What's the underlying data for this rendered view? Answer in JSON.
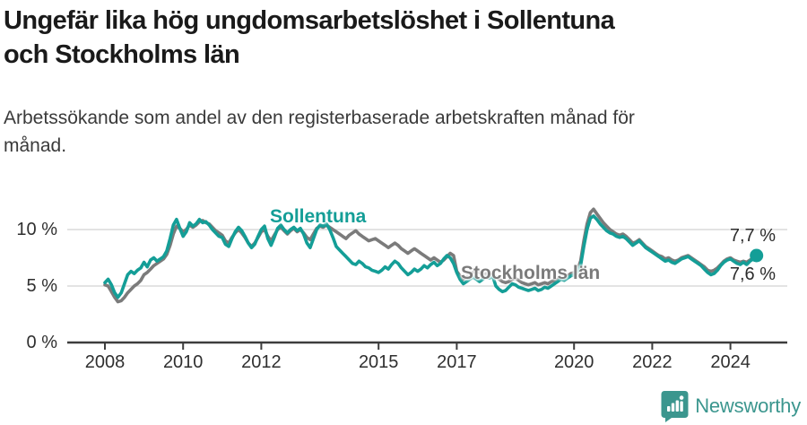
{
  "header": {
    "title": "Ungefär lika hög ungdomsarbetslöshet i Sollentuna\noch Stockholms län",
    "subtitle": "Arbetssökande som andel av den registerbaserade arbetskraften månad för\nmånad."
  },
  "chart_data": {
    "type": "line",
    "unit": "%",
    "frequency": "monthly",
    "x_range": "2008-01 to 2024-09",
    "grid": "horizontal gridlines at 5 % and 10 %",
    "ylim": [
      0,
      12
    ],
    "x_ticks": [
      2008,
      2010,
      2012,
      2015,
      2017,
      2020,
      2022,
      2024
    ],
    "x_tick_labels": [
      "2008",
      "2010",
      "2012",
      "2015",
      "2017",
      "2020",
      "2022",
      "2024"
    ],
    "y_ticks": [
      10,
      5,
      0
    ],
    "y_tick_labels": [
      "10 %",
      "5 %",
      "0 %"
    ],
    "series": [
      {
        "name": "Sollentuna",
        "color": "#149e97",
        "end_label": "7,7 %",
        "values": [
          5.3,
          5.6,
          5.1,
          4.4,
          4.0,
          4.4,
          5.2,
          6.0,
          6.3,
          6.1,
          6.4,
          6.6,
          7.1,
          6.7,
          7.3,
          7.5,
          7.2,
          7.4,
          7.6,
          8.1,
          9.2,
          10.4,
          10.9,
          10.1,
          9.4,
          9.8,
          10.6,
          10.3,
          10.5,
          10.9,
          10.6,
          10.7,
          10.4,
          10.0,
          9.7,
          9.4,
          9.3,
          8.7,
          8.5,
          9.2,
          9.8,
          10.2,
          9.9,
          9.4,
          8.8,
          8.4,
          8.7,
          9.4,
          10.0,
          10.3,
          9.2,
          8.6,
          9.3,
          10.1,
          10.4,
          10.0,
          9.7,
          10.0,
          10.2,
          9.9,
          10.1,
          9.6,
          8.8,
          8.4,
          9.2,
          10.0,
          10.4,
          10.3,
          10.5,
          10.0,
          9.3,
          8.5,
          8.2,
          7.9,
          7.6,
          7.3,
          7.0,
          6.9,
          7.2,
          7.0,
          6.7,
          6.6,
          6.4,
          6.3,
          6.2,
          6.4,
          6.7,
          6.5,
          6.9,
          7.2,
          7.0,
          6.6,
          6.3,
          6.0,
          6.2,
          6.5,
          6.3,
          6.5,
          6.8,
          6.6,
          6.9,
          7.1,
          6.8,
          7.0,
          7.4,
          7.7,
          7.5,
          7.0,
          6.2,
          5.6,
          5.2,
          5.4,
          5.6,
          5.8,
          5.6,
          5.4,
          5.6,
          5.8,
          5.7,
          5.9,
          5.0,
          4.7,
          4.5,
          4.6,
          4.9,
          5.2,
          5.1,
          4.9,
          4.8,
          4.7,
          4.6,
          4.7,
          4.8,
          4.6,
          4.7,
          4.9,
          4.8,
          5.0,
          5.2,
          5.4,
          5.6,
          5.5,
          5.7,
          5.9,
          6.0,
          6.2,
          6.8,
          8.5,
          10.0,
          11.0,
          11.2,
          10.9,
          10.5,
          10.2,
          9.9,
          9.7,
          9.6,
          9.4,
          9.3,
          9.4,
          9.2,
          8.9,
          8.6,
          8.8,
          9.0,
          8.7,
          8.4,
          8.2,
          8.0,
          7.8,
          7.6,
          7.4,
          7.2,
          7.3,
          7.1,
          7.0,
          7.2,
          7.4,
          7.5,
          7.6,
          7.4,
          7.2,
          7.0,
          6.8,
          6.5,
          6.2,
          6.0,
          6.1,
          6.4,
          6.8,
          7.1,
          7.3,
          7.4,
          7.2,
          7.0,
          6.9,
          7.1,
          6.9,
          7.2,
          7.4,
          7.7
        ]
      },
      {
        "name": "Stockholms län",
        "color": "#7b7b7b",
        "end_label": "7,6 %",
        "values": [
          5.1,
          5.0,
          4.5,
          4.0,
          3.6,
          3.7,
          4.0,
          4.4,
          4.7,
          5.0,
          5.2,
          5.5,
          6.0,
          6.2,
          6.5,
          6.8,
          7.0,
          7.2,
          7.4,
          7.8,
          8.6,
          9.6,
          10.3,
          10.1,
          9.8,
          10.0,
          10.4,
          10.2,
          10.4,
          10.7,
          10.8,
          10.6,
          10.5,
          10.2,
          9.9,
          9.7,
          9.5,
          9.0,
          8.8,
          9.3,
          9.7,
          10.0,
          9.7,
          9.3,
          8.8,
          8.5,
          8.8,
          9.3,
          9.8,
          10.0,
          9.4,
          9.0,
          9.5,
          10.0,
          10.2,
          9.9,
          9.6,
          9.9,
          10.1,
          9.8,
          10.0,
          9.7,
          9.3,
          9.1,
          9.6,
          10.1,
          10.3,
          10.2,
          10.4,
          10.2,
          10.0,
          9.8,
          9.6,
          9.4,
          9.2,
          9.5,
          9.7,
          9.9,
          9.6,
          9.4,
          9.2,
          9.0,
          9.1,
          9.2,
          9.0,
          8.8,
          8.6,
          8.4,
          8.6,
          8.8,
          8.6,
          8.3,
          8.1,
          7.9,
          8.1,
          8.3,
          8.1,
          7.9,
          7.7,
          7.5,
          7.3,
          7.5,
          7.3,
          7.1,
          7.3,
          7.6,
          7.9,
          7.7,
          6.3,
          5.9,
          5.6,
          5.8,
          6.0,
          6.2,
          6.4,
          6.2,
          6.0,
          6.1,
          5.9,
          6.0,
          5.8,
          5.6,
          5.4,
          5.3,
          5.4,
          5.6,
          5.7,
          5.5,
          5.3,
          5.2,
          5.1,
          5.2,
          5.3,
          5.1,
          5.2,
          5.3,
          5.2,
          5.4,
          5.5,
          5.6,
          5.8,
          5.7,
          5.9,
          6.1,
          6.2,
          6.4,
          7.2,
          9.0,
          10.5,
          11.5,
          11.8,
          11.4,
          11.0,
          10.6,
          10.3,
          10.0,
          9.8,
          9.6,
          9.5,
          9.6,
          9.4,
          9.1,
          8.8,
          8.9,
          9.1,
          8.8,
          8.5,
          8.3,
          8.1,
          7.9,
          7.7,
          7.6,
          7.4,
          7.5,
          7.3,
          7.2,
          7.3,
          7.5,
          7.6,
          7.7,
          7.5,
          7.3,
          7.1,
          6.9,
          6.7,
          6.4,
          6.3,
          6.4,
          6.6,
          6.9,
          7.2,
          7.4,
          7.5,
          7.3,
          7.2,
          7.1,
          7.2,
          7.1,
          7.3,
          7.5,
          7.6
        ]
      }
    ]
  },
  "footer": {
    "brand": "Newsworthy"
  }
}
